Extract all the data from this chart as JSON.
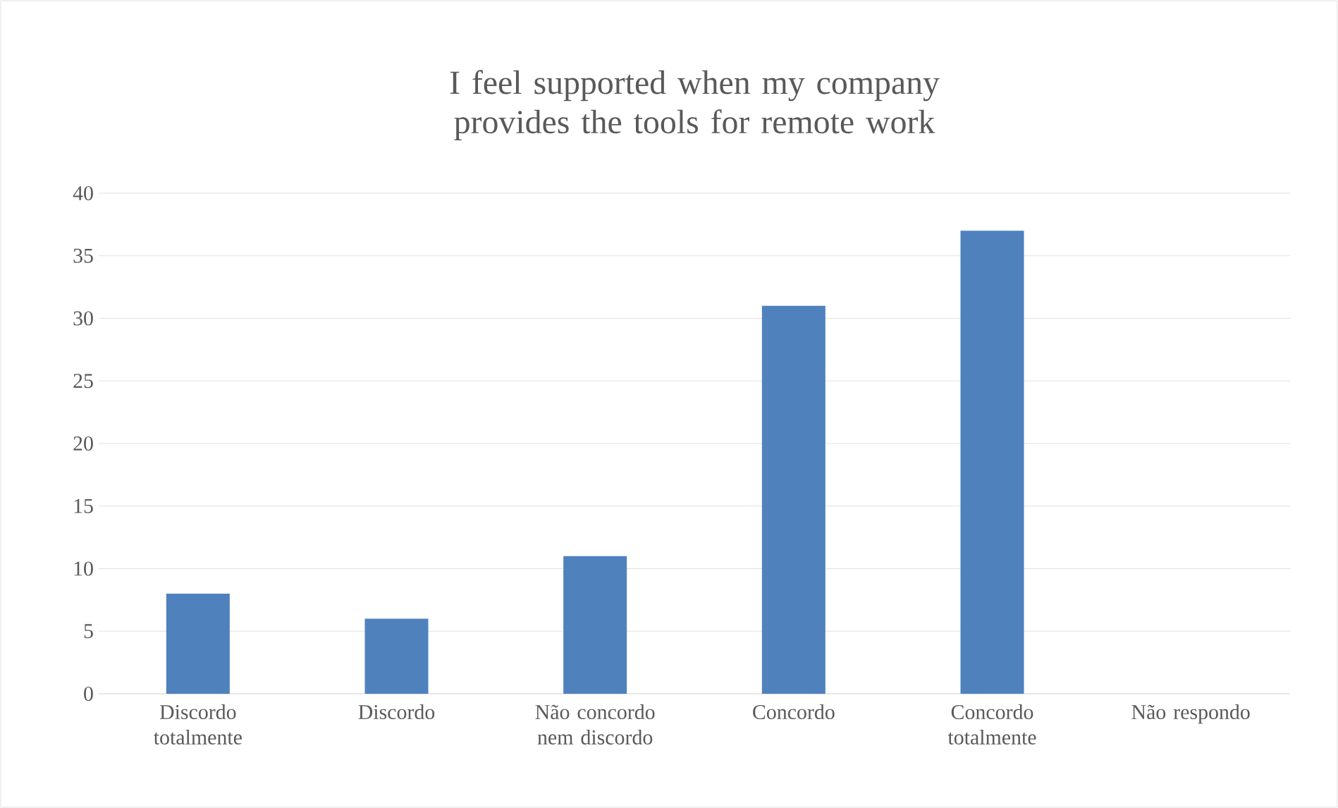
{
  "chart_data": {
    "type": "bar",
    "title": "I feel supported when my company provides the tools for remote work",
    "categories": [
      "Discordo totalmente",
      "Discordo",
      "Não concordo nem discordo",
      "Concordo",
      "Concordo totalmente",
      "Não respondo"
    ],
    "values": [
      8,
      6,
      11,
      31,
      37,
      0
    ],
    "color": "#4f81bd",
    "ylim": [
      0,
      40
    ],
    "yticks": [
      0,
      5,
      10,
      15,
      20,
      25,
      30,
      35,
      40
    ],
    "grid": "y"
  }
}
